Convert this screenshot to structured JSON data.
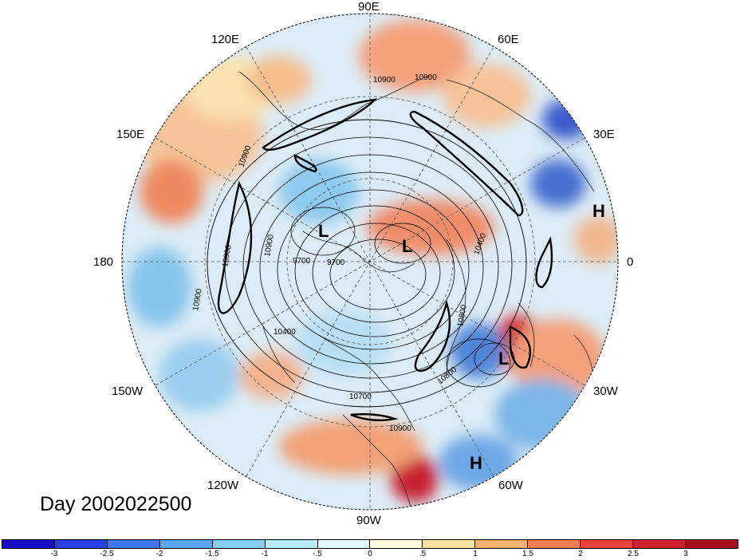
{
  "day_label": "Day 2002022500",
  "longitude_labels": {
    "lon_90e": "90E",
    "lon_60e": "60E",
    "lon_120e": "120E",
    "lon_150e": "150E",
    "lon_30e": "30E",
    "lon_180": "180",
    "lon_0": "0",
    "lon_150w": "150W",
    "lon_30w": "30W",
    "lon_120w": "120W",
    "lon_60w": "60W",
    "lon_90w": "90W"
  },
  "pressure_centers": [
    {
      "id": "low-1",
      "label": "L"
    },
    {
      "id": "low-2",
      "label": "L"
    },
    {
      "id": "low-3",
      "label": "L"
    },
    {
      "id": "high-1",
      "label": "H"
    },
    {
      "id": "high-2",
      "label": "H"
    }
  ],
  "contour_labels": {
    "c_10900_a": "10900",
    "c_10900_b": "10900",
    "c_10900_c": "10900",
    "c_10900_d": "10900",
    "c_10900_e": "10900",
    "c_10900_f": "10900",
    "c_9700_a": "9700",
    "c_9700_b": "9700",
    "c_10400_a": "10400",
    "c_10400_b": "10400",
    "c_10800": "10800",
    "c_10700": "10700",
    "c_10800_b": "10800",
    "c_10900_g": "10900"
  },
  "colorbar": {
    "colors": [
      "#1a0fc8",
      "#2b3fe6",
      "#3f78ee",
      "#5aa7f2",
      "#86cef7",
      "#b7ecfb",
      "#e2f8fd",
      "#fefbdb",
      "#fbe2a2",
      "#f6b173",
      "#ef7d58",
      "#e6443d",
      "#cc2230",
      "#a50f1e"
    ],
    "ticks": [
      "-3",
      "-2.5",
      "-2",
      "-1.5",
      "-1",
      "-.5",
      "0",
      ".5",
      "1",
      "1.5",
      "2",
      "2.5",
      "3"
    ]
  }
}
